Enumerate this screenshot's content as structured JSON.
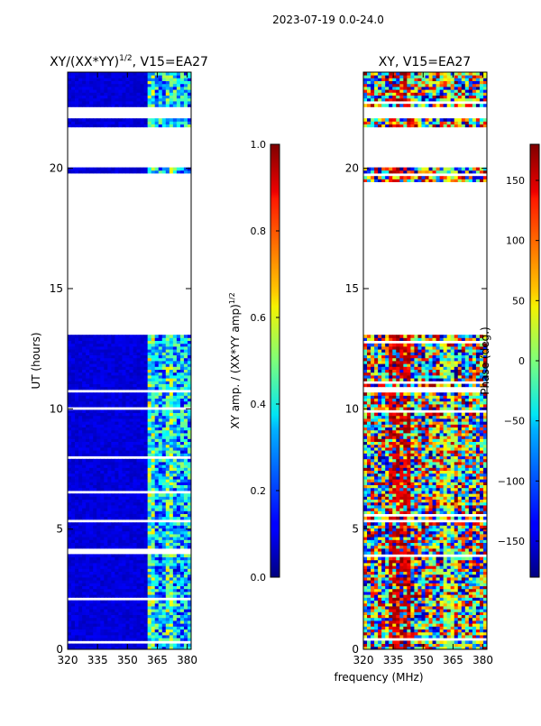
{
  "suptitle": "2023-07-19 0.0-24.0",
  "chart_data": [
    {
      "type": "heatmap",
      "title_prefix": "XY/(XX*YY)",
      "title_exp": "1/2",
      "title_suffix": ", V15=EA27",
      "xlabel": "",
      "ylabel": "UT (hours)",
      "xlim": [
        320,
        382
      ],
      "ylim": [
        0,
        24
      ],
      "xticks": [
        320,
        335,
        350,
        365,
        380
      ],
      "yticks": [
        0,
        5,
        10,
        15,
        20
      ],
      "colorbar": {
        "label_prefix": "XY amp. / (XX*YY amp)",
        "label_exp": "1/2",
        "range": [
          0.0,
          1.0
        ],
        "ticks": [
          0.0,
          0.2,
          0.4,
          0.6,
          0.8,
          1.0
        ],
        "tick_labels": [
          "0.0",
          "0.2",
          "0.4",
          "0.6",
          "0.8",
          "1.0"
        ],
        "colormap": "jet"
      },
      "data_gaps_hours": [
        [
          13.0,
          19.4
        ],
        [
          20.0,
          21.7
        ],
        [
          22.0,
          22.5
        ]
      ]
    },
    {
      "type": "heatmap",
      "title": "XY, V15=EA27",
      "xlabel": "frequency (MHz)",
      "ylabel": "",
      "xlim": [
        320,
        382
      ],
      "ylim": [
        0,
        24
      ],
      "xticks": [
        320,
        335,
        350,
        365,
        380
      ],
      "yticks": [
        0,
        5,
        10,
        15,
        20
      ],
      "colorbar": {
        "label": "Phase (deg.)",
        "range": [
          -180,
          180
        ],
        "ticks": [
          -150,
          -100,
          -50,
          0,
          50,
          100,
          150
        ],
        "tick_labels": [
          "−150",
          "−100",
          "−50",
          "0",
          "50",
          "100",
          "150"
        ],
        "colormap": "jet"
      },
      "data_gaps_hours": [
        [
          13.0,
          19.4
        ],
        [
          20.0,
          21.7
        ],
        [
          22.0,
          22.5
        ]
      ]
    }
  ]
}
